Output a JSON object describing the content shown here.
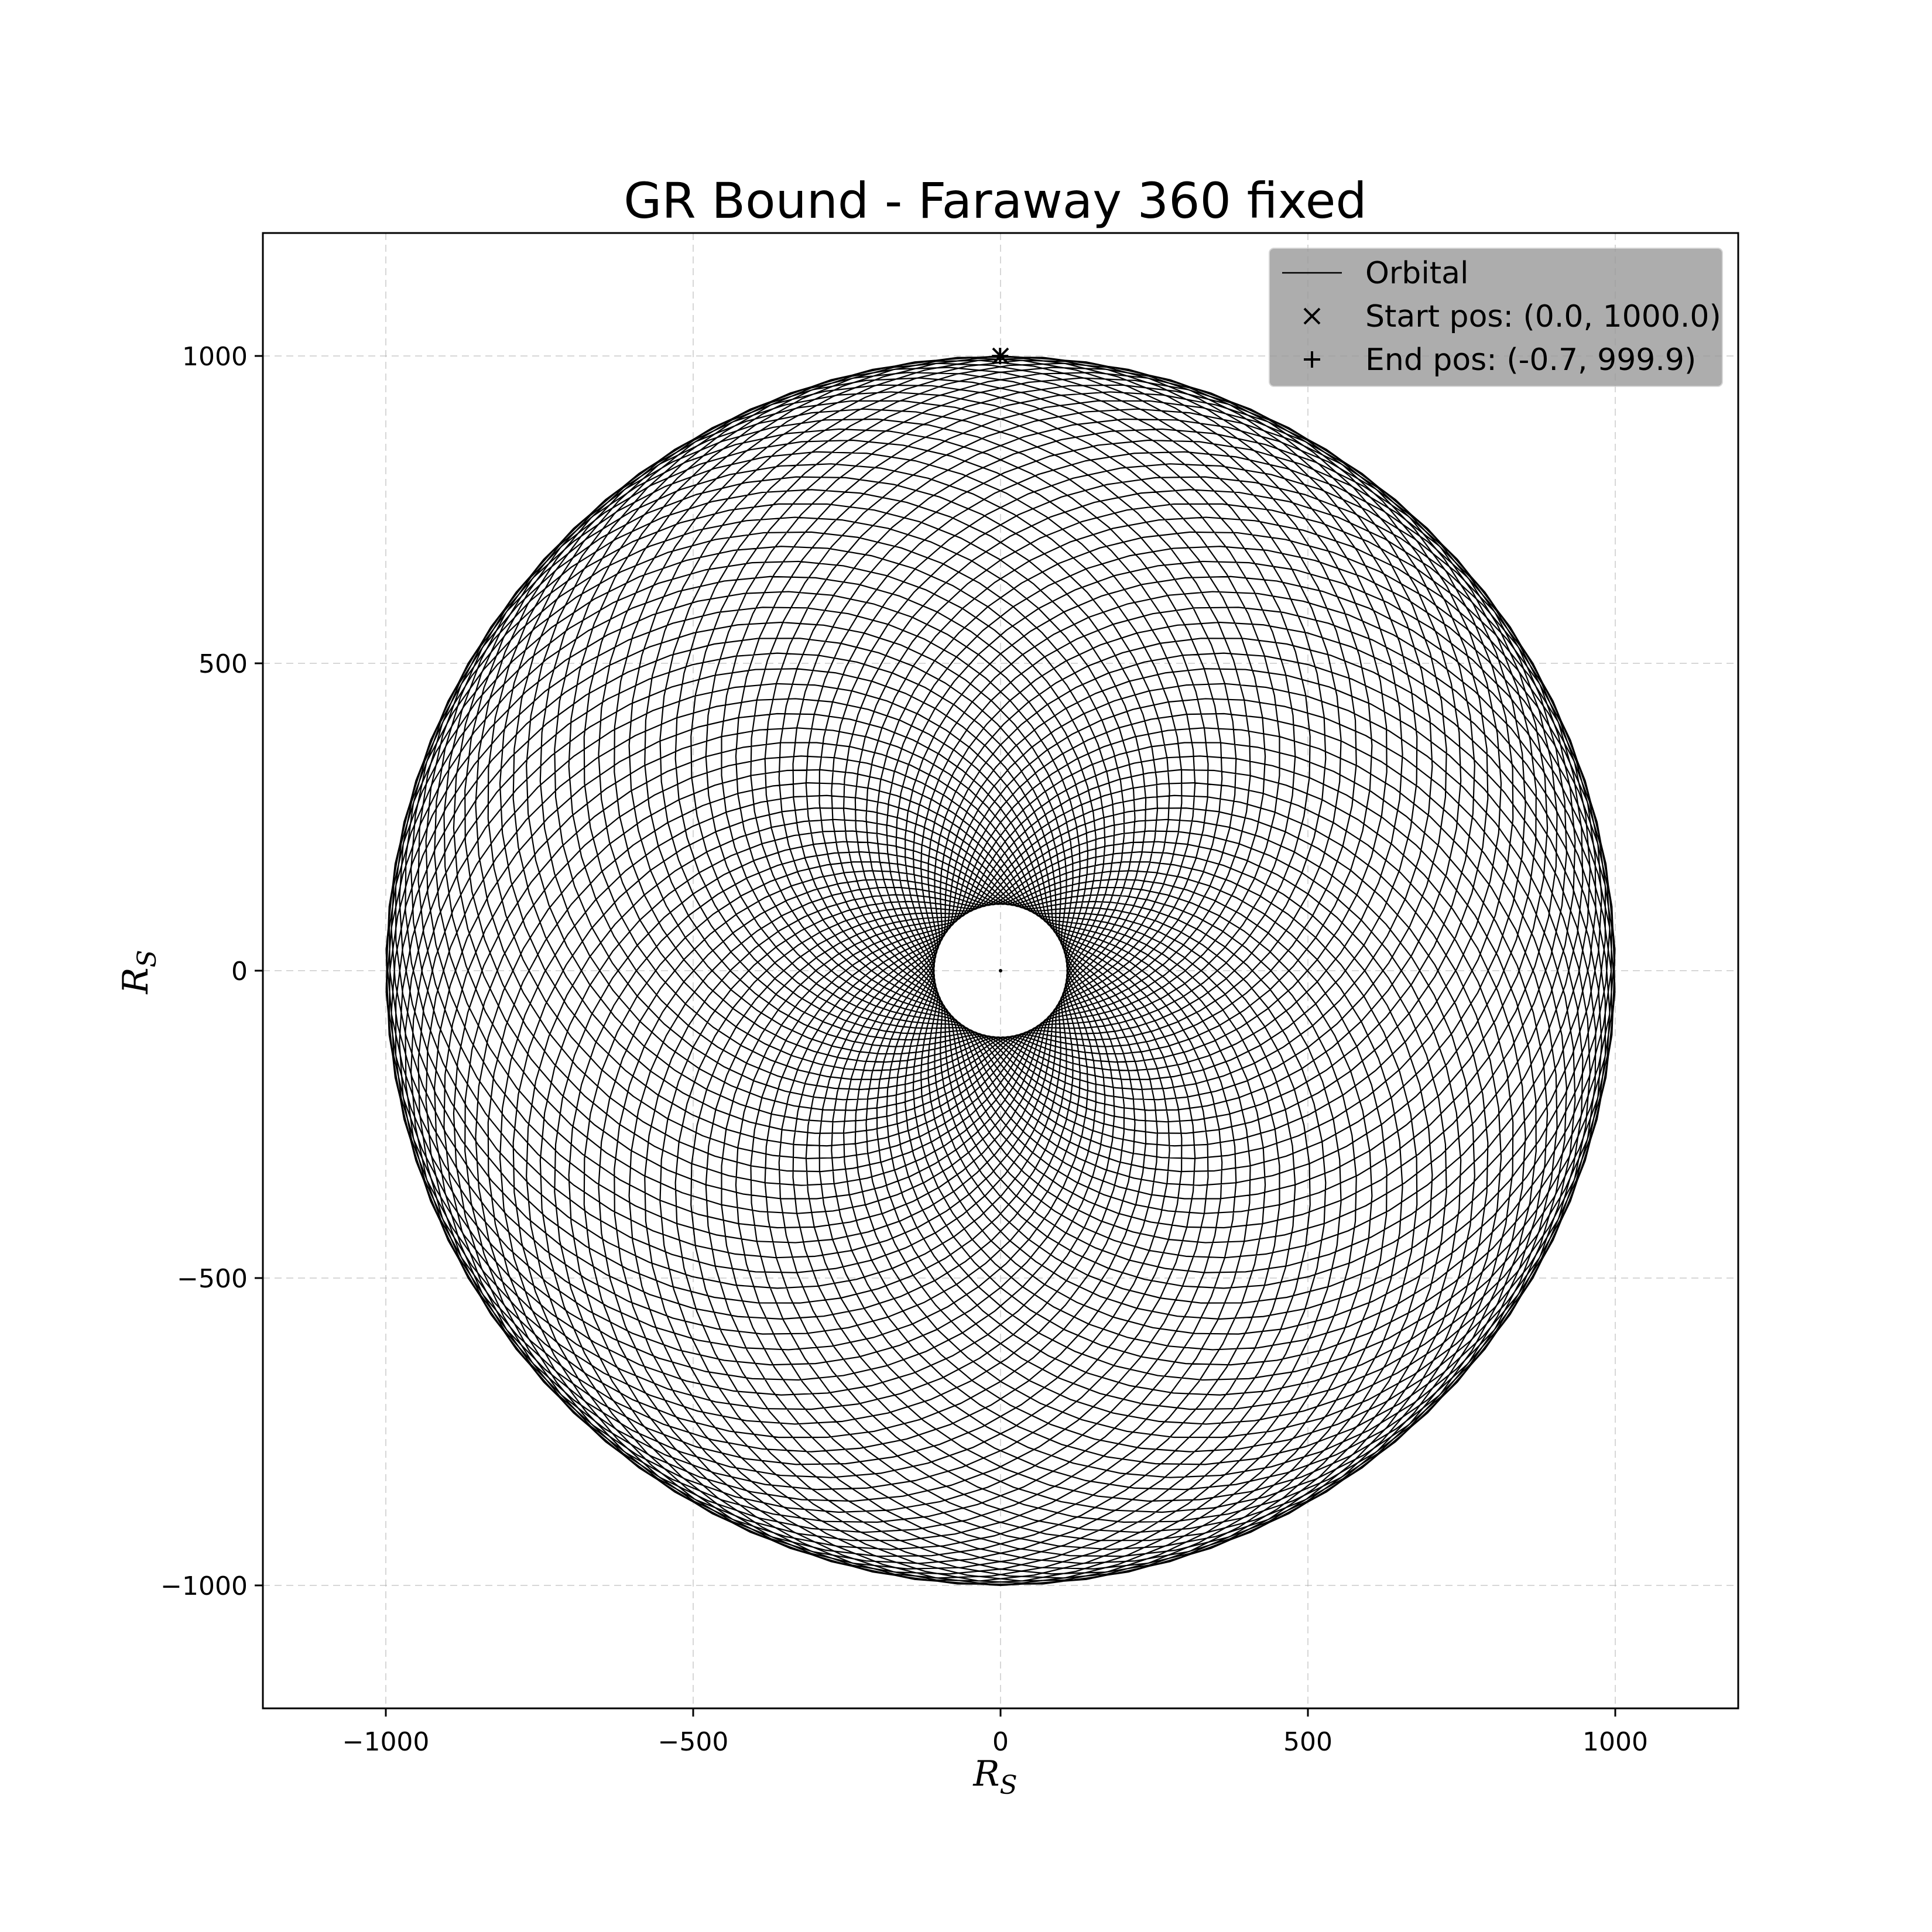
{
  "chart_data": {
    "type": "line",
    "title": "GR Bound - Faraway 360 fixed",
    "xlabel": "R",
    "xlabel_sub": "S",
    "ylabel": "R",
    "ylabel_sub": "S",
    "xlim": [
      -1200,
      1200
    ],
    "ylim": [
      -1200,
      1200
    ],
    "xticks": [
      -1000,
      -500,
      0,
      500,
      1000
    ],
    "yticks": [
      -1000,
      -500,
      0,
      500,
      1000
    ],
    "xtick_labels": [
      "−1000",
      "−500",
      "0",
      "500",
      "1000"
    ],
    "ytick_labels": [
      "−1000",
      "−500",
      "0",
      "500",
      "1000"
    ],
    "grid": true,
    "legend_position": "top-right",
    "legend_background": "#999999",
    "series": [
      {
        "name": "Orbital",
        "color": "#000000",
        "style": "line",
        "r_max": 1000,
        "r_min": 108,
        "petals": 90
      }
    ],
    "points": [
      {
        "name": "Start pos: (0.0, 1000.0)",
        "marker": "x",
        "x": 0.0,
        "y": 1000.0
      },
      {
        "name": "End pos: (-0.7, 999.9)",
        "marker": "+",
        "x": -0.7,
        "y": 999.9
      }
    ],
    "center_point": {
      "x": 0,
      "y": 0
    }
  }
}
